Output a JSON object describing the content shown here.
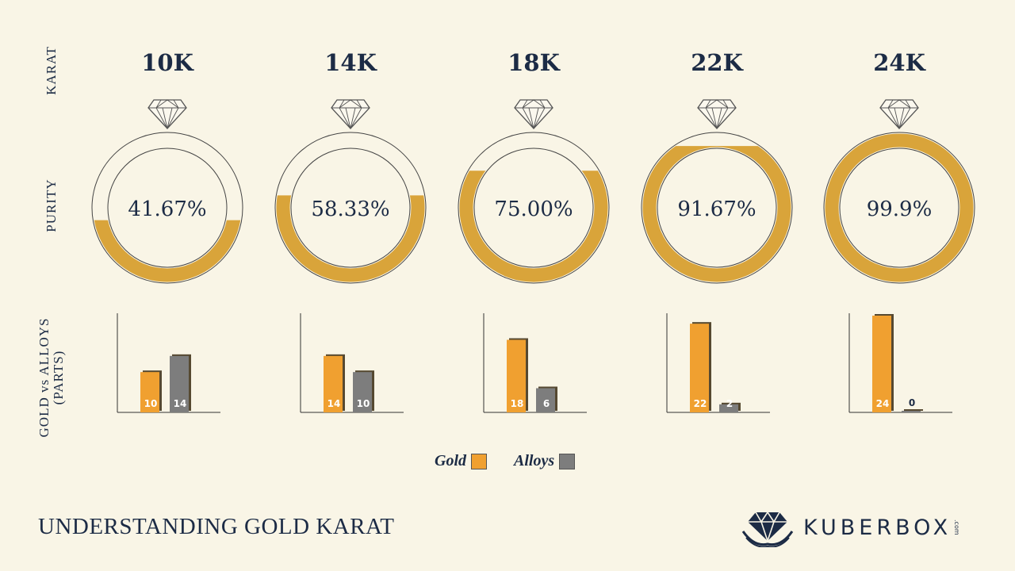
{
  "side_labels": {
    "karat": "KARAT",
    "purity": "PURITY",
    "parts_line1": "GOLD vs ALLOYS",
    "parts_line2": "(PARTS)"
  },
  "colors": {
    "gold": "#d9a43a",
    "gold_bar": "#f0a030",
    "alloy_bar": "#7d7d7d",
    "text": "#1c2b45",
    "background": "#f9f5e6"
  },
  "chart_data": {
    "type": "bar",
    "categories": [
      "10K",
      "14K",
      "18K",
      "22K",
      "24K"
    ],
    "purity_labels": [
      "41.67%",
      "58.33%",
      "75.00%",
      "91.67%",
      "99.9%"
    ],
    "purity_values": [
      41.67,
      58.33,
      75.0,
      91.67,
      99.9
    ],
    "series": [
      {
        "name": "Gold",
        "values": [
          10,
          14,
          18,
          22,
          24
        ]
      },
      {
        "name": "Alloys",
        "values": [
          14,
          10,
          6,
          2,
          0
        ]
      }
    ],
    "ylim": [
      0,
      24
    ]
  },
  "legend": {
    "gold_label": "Gold",
    "alloys_label": "Alloys"
  },
  "footer": {
    "title": "UNDERSTANDING GOLD KARAT",
    "brand": "KUBERBOX",
    "brand_suffix": ".com"
  }
}
